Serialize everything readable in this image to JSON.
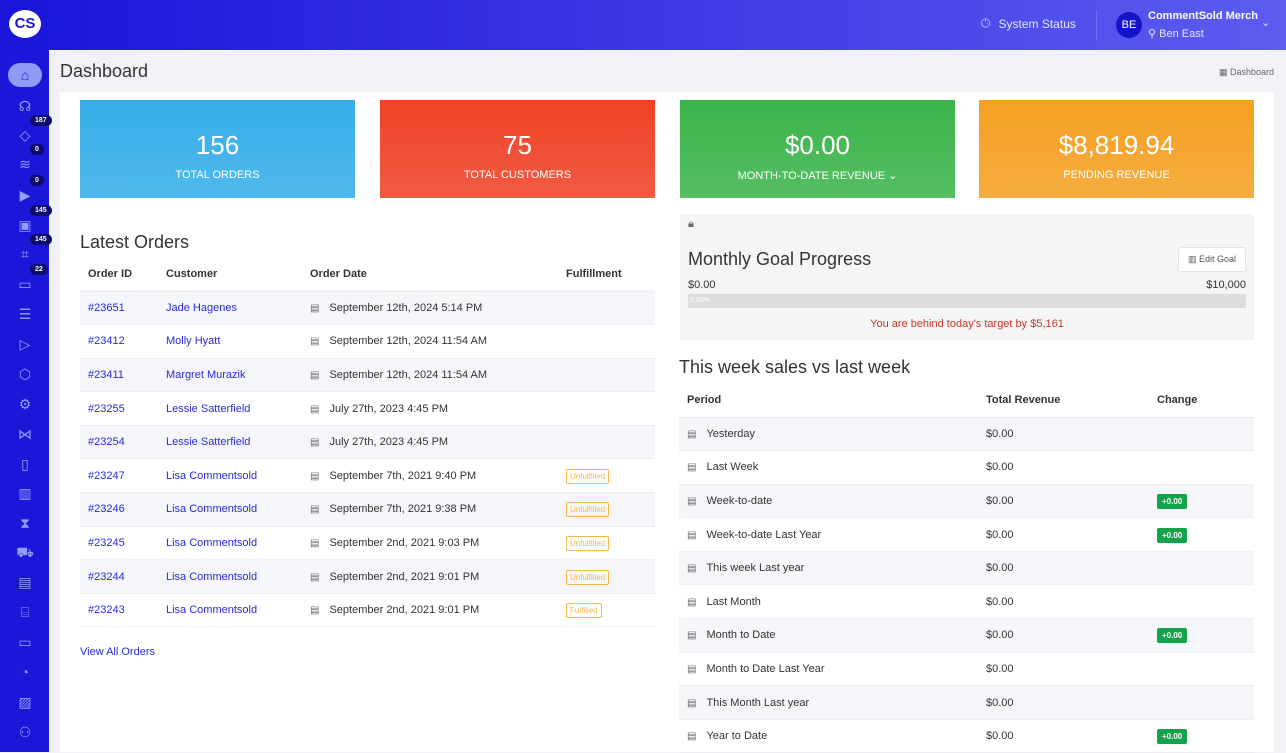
{
  "app": {
    "logo": "CS"
  },
  "sidebar": {
    "items": [
      {
        "icon": "home-icon",
        "glyph": "⌂"
      },
      {
        "icon": "headset-icon",
        "glyph": "☊"
      },
      {
        "icon": "tag-icon",
        "glyph": "◇",
        "badge": "187"
      },
      {
        "icon": "feed-icon",
        "glyph": "≋",
        "badge": "0"
      },
      {
        "icon": "play-icon",
        "glyph": "▶",
        "badge": "0"
      },
      {
        "icon": "box-icon",
        "glyph": "▣",
        "badge": "145"
      },
      {
        "icon": "scan-icon",
        "glyph": "⌗",
        "badge": "145"
      },
      {
        "icon": "ticket-icon",
        "glyph": "▭",
        "badge": "22"
      },
      {
        "icon": "user-list-icon",
        "glyph": "☰"
      },
      {
        "icon": "video-icon",
        "glyph": "▷"
      },
      {
        "icon": "package-icon",
        "glyph": "⬡"
      },
      {
        "icon": "gear-icon",
        "glyph": "⚙"
      },
      {
        "icon": "share-icon",
        "glyph": "⋈"
      },
      {
        "icon": "mobile-icon",
        "glyph": "▯"
      },
      {
        "icon": "chart-icon",
        "glyph": "▥"
      },
      {
        "icon": "hourglass-icon",
        "glyph": "⧗"
      },
      {
        "icon": "cart-icon",
        "glyph": "⛟"
      },
      {
        "icon": "news-icon",
        "glyph": "▤"
      },
      {
        "icon": "store-icon",
        "glyph": "⌸"
      },
      {
        "icon": "cards-icon",
        "glyph": "▭"
      },
      {
        "icon": "palette-icon",
        "glyph": "◔"
      },
      {
        "icon": "image-icon",
        "glyph": "▨"
      },
      {
        "icon": "team-icon",
        "glyph": "⚇"
      }
    ]
  },
  "header": {
    "system_status": "System Status",
    "avatar": "BE",
    "merchant": "CommentSold Merch",
    "user": "Ben East"
  },
  "page": {
    "title": "Dashboard",
    "breadcrumb": "Dashboard"
  },
  "colors": {
    "orders": "#35aee8",
    "customers": "#ef4226",
    "revenue": "#3bb44b",
    "pending": "#f4a022",
    "sidebar": "#1b17d9"
  },
  "stats": [
    {
      "value": "156",
      "label": "Total Orders"
    },
    {
      "value": "75",
      "label": "Total Customers"
    },
    {
      "value": "$0.00",
      "label": "Month-to-date Revenue ⌄"
    },
    {
      "value": "$8,819.94",
      "label": "Pending Revenue"
    }
  ],
  "orders": {
    "title": "Latest Orders",
    "headers": [
      "Order ID",
      "Customer",
      "Order Date",
      "Fulfillment"
    ],
    "rows": [
      [
        "#23651",
        "Jade Hagenes",
        "September 12th, 2024 5:14 PM",
        ""
      ],
      [
        "#23412",
        "Molly Hyatt",
        "September 12th, 2024 11:54 AM",
        ""
      ],
      [
        "#23411",
        "Margret Murazik",
        "September 12th, 2024 11:54 AM",
        ""
      ],
      [
        "#23255",
        "Lessie Satterfield",
        "July 27th, 2023 4:45 PM",
        ""
      ],
      [
        "#23254",
        "Lessie Satterfield",
        "July 27th, 2023 4:45 PM",
        ""
      ],
      [
        "#23247",
        "Lisa Commentsold",
        "September 7th, 2021 9:40 PM",
        "Unfulfilled"
      ],
      [
        "#23246",
        "Lisa Commentsold",
        "September 7th, 2021 9:38 PM",
        "Unfulfilled"
      ],
      [
        "#23245",
        "Lisa Commentsold",
        "September 2nd, 2021 9:03 PM",
        "Unfulfilled"
      ],
      [
        "#23244",
        "Lisa Commentsold",
        "September 2nd, 2021 9:01 PM",
        "Unfulfilled"
      ],
      [
        "#23243",
        "Lisa Commentsold",
        "September 2nd, 2021 9:01 PM",
        "Fulfilled"
      ]
    ],
    "view_all": "View All Orders"
  },
  "goal": {
    "title": "Monthly Goal Progress",
    "edit": "Edit Goal",
    "min": "$0.00",
    "max": "$10,000",
    "progress_label": "0.00%",
    "progress": 0,
    "message": "You are behind today's target by $5,161"
  },
  "weekly": {
    "title": "This week sales vs last week",
    "headers": [
      "Period",
      "Total Revenue",
      "Change"
    ],
    "rows": [
      [
        "Yesterday",
        "$0.00",
        ""
      ],
      [
        "Last Week",
        "$0.00",
        ""
      ],
      [
        "Week-to-date",
        "$0.00",
        "+0.00"
      ],
      [
        "Week-to-date Last Year",
        "$0.00",
        "+0.00"
      ],
      [
        "This week Last year",
        "$0.00",
        ""
      ],
      [
        "Last Month",
        "$0.00",
        ""
      ],
      [
        "Month to Date",
        "$0.00",
        "+0.00"
      ],
      [
        "Month to Date Last Year",
        "$0.00",
        ""
      ],
      [
        "This Month Last year",
        "$0.00",
        ""
      ],
      [
        "Year to Date",
        "$0.00",
        "+0.00"
      ]
    ]
  }
}
